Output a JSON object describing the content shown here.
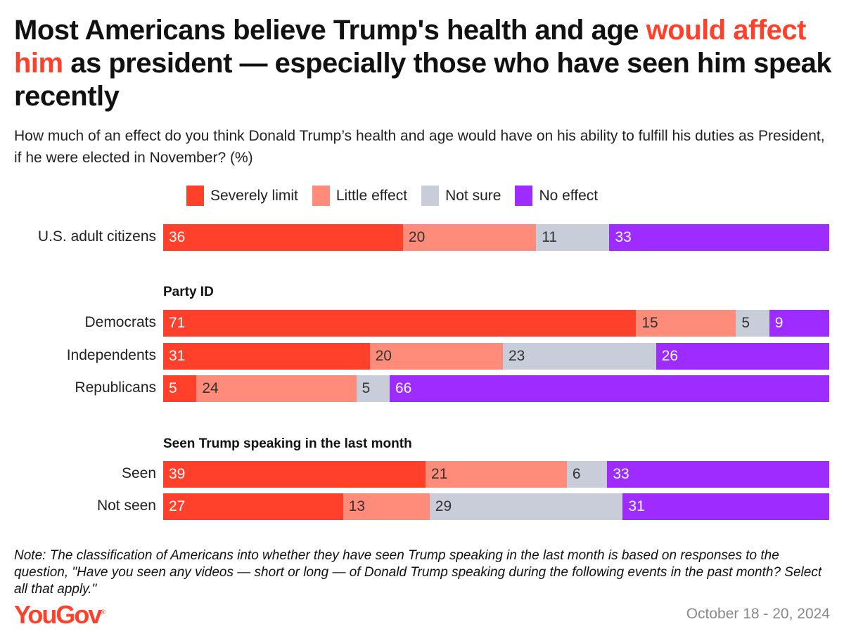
{
  "chart_data": {
    "type": "bar",
    "orientation": "horizontal-stacked-100",
    "title_parts": [
      "Most Americans believe Trump's health and age ",
      "would affect him",
      " as president — especially those who have seen him speak recently"
    ],
    "subtitle": "How much of an effect do you think Donald Trump’s health and age would have on his ability to fulfill his duties as President, if he were elected in November? (%)",
    "legend_position": "top",
    "series": [
      {
        "name": "Severely limit",
        "color": "#ff412c",
        "text_color": "#ffffff"
      },
      {
        "name": "Little effect",
        "color": "#ff8b7b",
        "text_color": "#333333"
      },
      {
        "name": "Not sure",
        "color": "#c9cdd9",
        "text_color": "#333333"
      },
      {
        "name": "No effect",
        "color": "#9e2bff",
        "text_color": "#ffffff"
      }
    ],
    "groups": [
      {
        "heading": "",
        "rows": [
          {
            "label": "U.S. adult citizens",
            "values": [
              36,
              20,
              11,
              33
            ]
          }
        ]
      },
      {
        "heading": "Party ID",
        "rows": [
          {
            "label": "Democrats",
            "values": [
              71,
              15,
              5,
              9
            ]
          },
          {
            "label": "Independents",
            "values": [
              31,
              20,
              23,
              26
            ]
          },
          {
            "label": "Republicans",
            "values": [
              5,
              24,
              5,
              66
            ]
          }
        ]
      },
      {
        "heading": "Seen Trump speaking in the last month",
        "rows": [
          {
            "label": "Seen",
            "values": [
              39,
              21,
              6,
              33
            ]
          },
          {
            "label": "Not seen",
            "values": [
              27,
              13,
              29,
              31
            ]
          }
        ]
      }
    ]
  },
  "note": "Note: The classification of Americans into whether they have seen Trump speaking in the last month is based on responses to the question, \"Have you seen any videos — short or long — of Donald Trump speaking during the following events in the past month? Select all that apply.\"",
  "logo": "YouGov",
  "date": "October 18 - 20, 2024"
}
